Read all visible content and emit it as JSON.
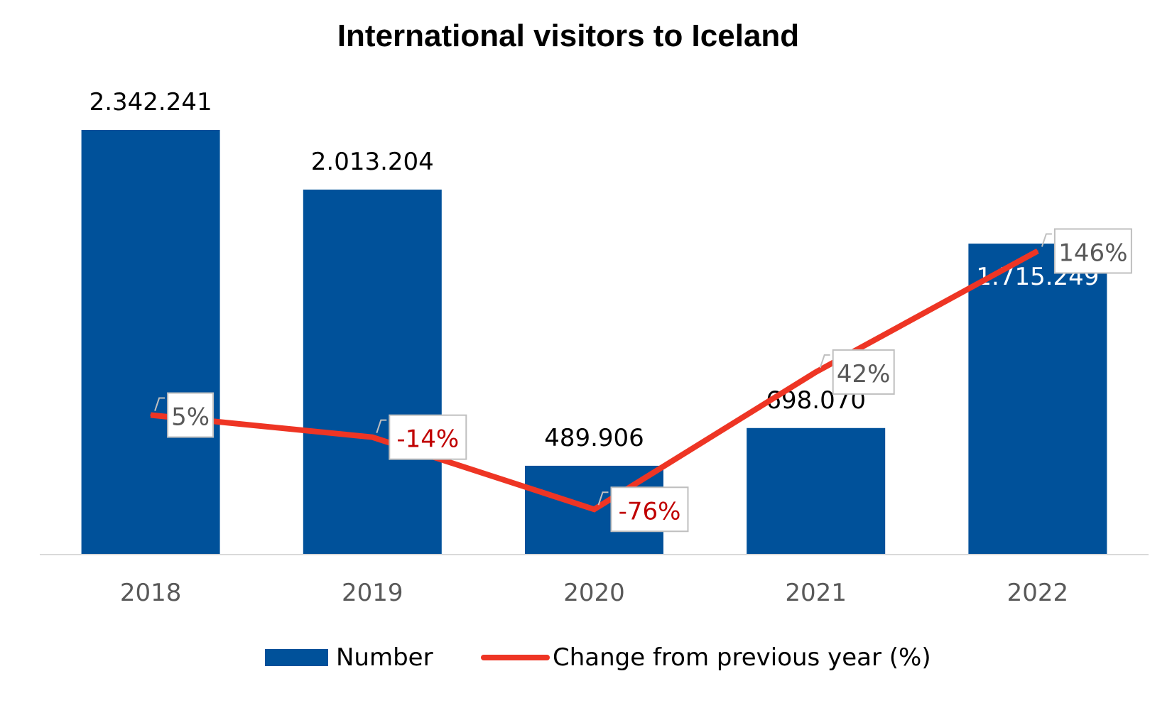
{
  "chart_data": {
    "type": "bar",
    "title": "International visitors to Iceland",
    "categories": [
      "2018",
      "2019",
      "2020",
      "2021",
      "2022"
    ],
    "series": [
      {
        "name": "Number",
        "type": "bar",
        "axis": "left",
        "values": [
          2342241,
          2013204,
          489906,
          698070,
          1715249
        ],
        "labels": [
          "2.342.241",
          "2.013.204",
          "489.906",
          "698.070",
          "1.715.249"
        ],
        "color": "#00519A"
      },
      {
        "name": "Change from previous year (%)",
        "type": "line",
        "axis": "right",
        "values": [
          5,
          -14,
          -76,
          42,
          146
        ],
        "labels": [
          "5%",
          "-14%",
          "-76%",
          "42%",
          "146%"
        ],
        "color": "#EE3524"
      }
    ],
    "ylim_left": [
      0,
      2342241
    ],
    "ylim_right": [
      -85,
      200
    ],
    "grid": false,
    "legend_position": "bottom",
    "label_colors": {
      "bar_label_dark": "#000000",
      "bar_label_light": "#ffffff",
      "positive_pct": "#595959",
      "negative_pct": "#C00000",
      "axis_line": "#d9d9d9",
      "label_box_border": "#bfbfbf"
    }
  }
}
